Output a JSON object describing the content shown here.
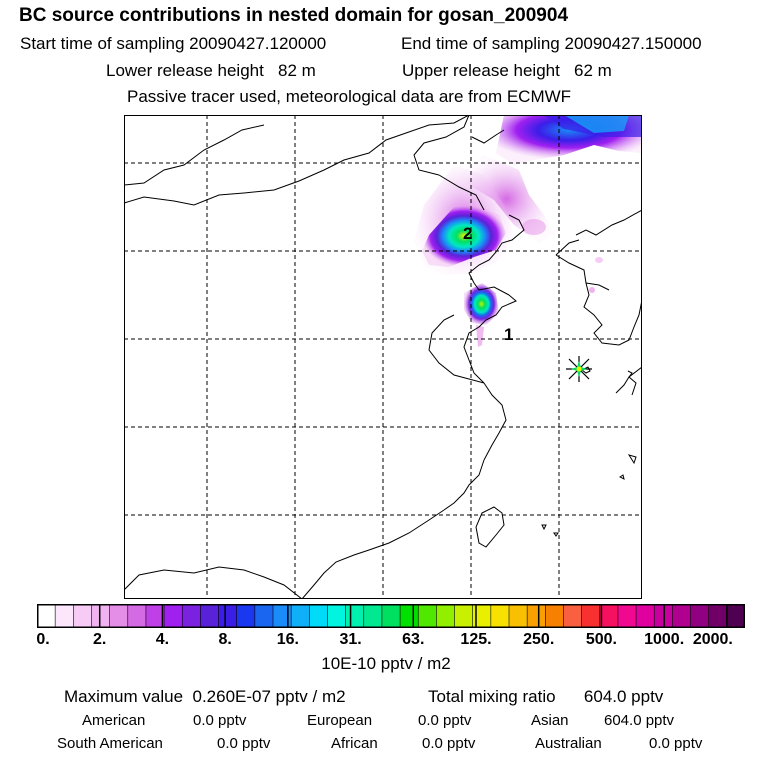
{
  "header": {
    "title": "BC  source contributions in nested domain for gosan_200904",
    "start_label": "Start time of sampling",
    "start_value": "20090427.120000",
    "end_label": "End time of sampling",
    "end_value": "20090427.150000",
    "lower_label": "Lower release height",
    "lower_value": "82 m",
    "upper_label": "Upper release height",
    "upper_value": "62 m",
    "tracer_note": "Passive tracer used, meteorological data are from ECMWF"
  },
  "map": {
    "labels": [
      "2",
      "1"
    ],
    "receptor_marker": "star-marker"
  },
  "colorbar": {
    "colors": [
      "#ffffff",
      "#fbe6fb",
      "#f6ccf6",
      "#f0b2f0",
      "#e48ee8",
      "#d46ae4",
      "#c040e8",
      "#a020f0",
      "#7a22e0",
      "#5a22d8",
      "#3a1ee8",
      "#1a38f0",
      "#1a66f0",
      "#1a8cf8",
      "#10b0f8",
      "#00dcf8",
      "#00f4e0",
      "#00f0b0",
      "#00e890",
      "#00e060",
      "#00e000",
      "#50e800",
      "#90f000",
      "#c8f000",
      "#e8f000",
      "#f8e000",
      "#f8c000",
      "#f8a000",
      "#f88000",
      "#f86040",
      "#f83030",
      "#f81060",
      "#f00890",
      "#e000a0",
      "#c800a0",
      "#b00090",
      "#900080",
      "#700068",
      "#500050"
    ],
    "tick_labels": [
      "0.",
      "2.",
      "4.",
      "8.",
      "16.",
      "31.",
      "63.",
      "125.",
      "250.",
      "500.",
      "1000.",
      "2000."
    ],
    "units": "10E-10 pptv / m2"
  },
  "stats": {
    "max_label": "Maximum value",
    "max_value": "0.260E-07 pptv / m2",
    "total_label": "Total mixing ratio",
    "total_value": "604.0 pptv",
    "regions": [
      {
        "name": "American",
        "value": "0.0 pptv"
      },
      {
        "name": "European",
        "value": "0.0 pptv"
      },
      {
        "name": "Asian",
        "value": "604.0 pptv"
      },
      {
        "name": "South American",
        "value": "0.0 pptv"
      },
      {
        "name": "African",
        "value": "0.0 pptv"
      },
      {
        "name": "Australian",
        "value": "0.0 pptv"
      }
    ]
  }
}
